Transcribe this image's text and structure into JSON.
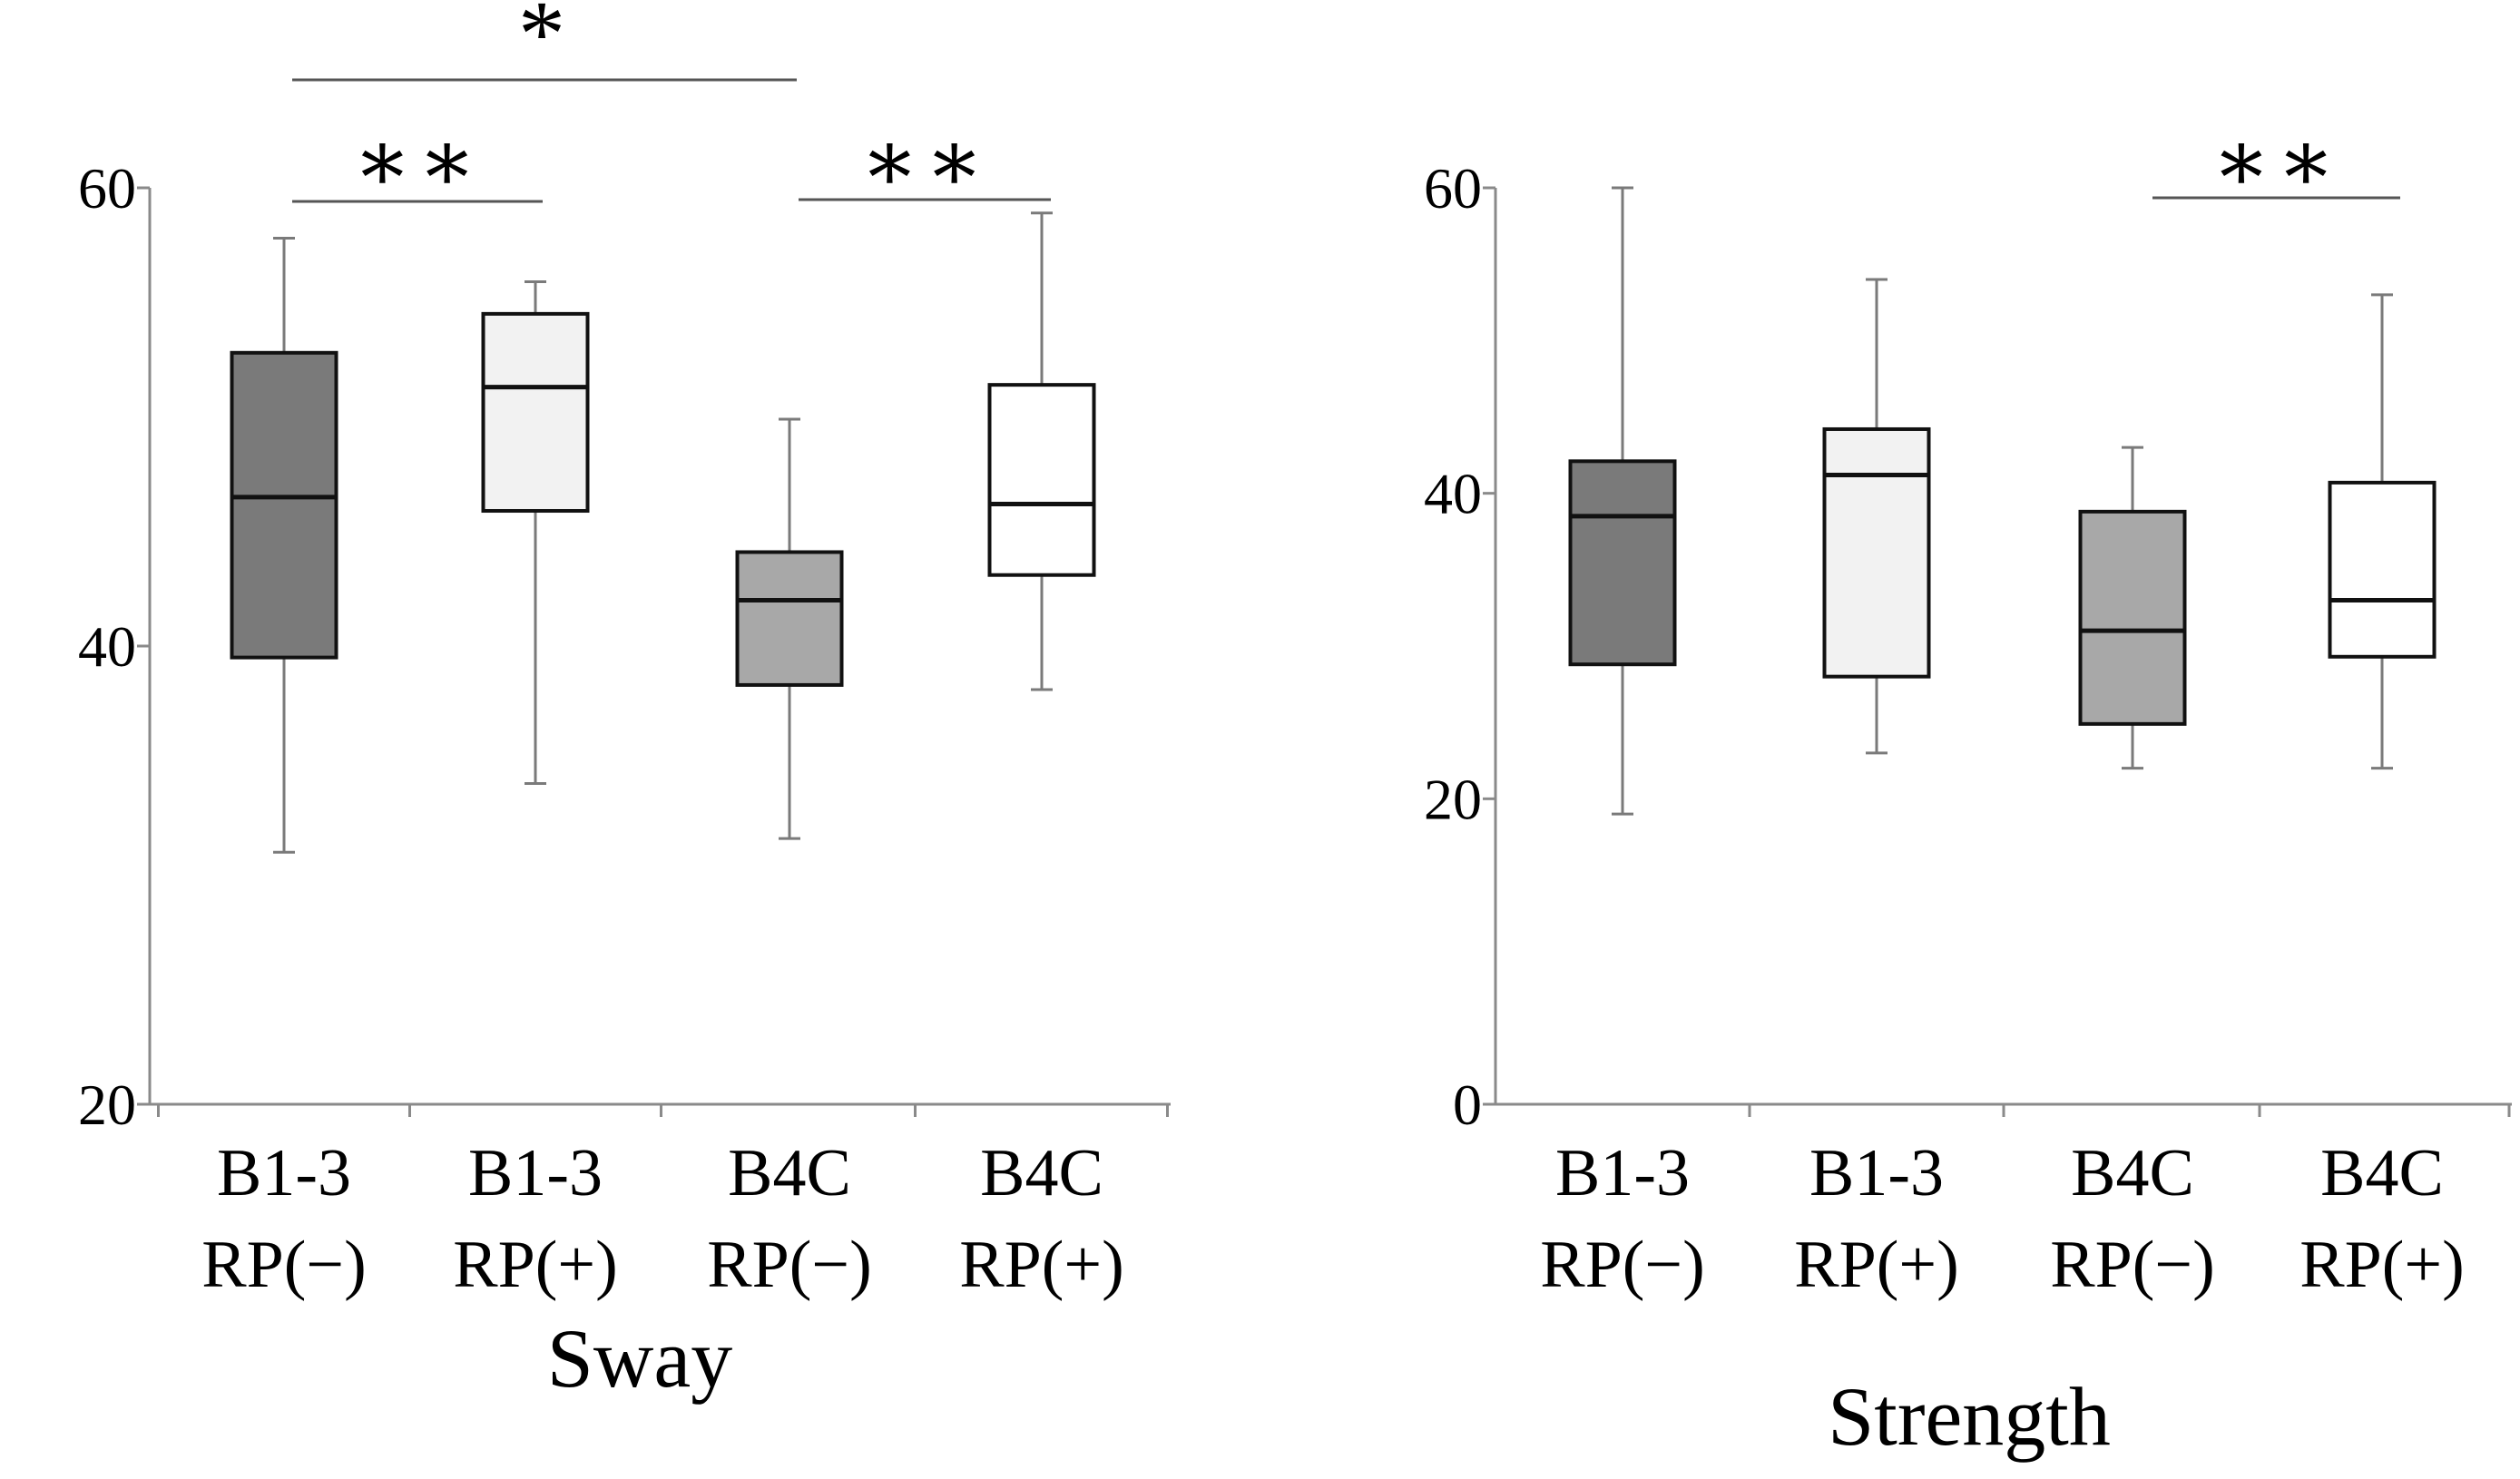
{
  "chart_data": [
    {
      "type": "box",
      "title": "Sway",
      "xlabel": "Sway",
      "ylabel": "",
      "ylim": [
        20,
        60
      ],
      "yticks": [
        20,
        40,
        60
      ],
      "ytick_labels": [
        "20",
        "40",
        "60"
      ],
      "categories": [
        {
          "line1": "B1-3",
          "line2": "RP(−)"
        },
        {
          "line1": "B1-3",
          "line2": "RP(+)"
        },
        {
          "line1": "B4C",
          "line2": "RP(−)"
        },
        {
          "line1": "B4C",
          "line2": "RP(+)"
        }
      ],
      "boxes": [
        {
          "min": 31,
          "q1": 39.5,
          "median": 46.5,
          "q3": 52.8,
          "max": 57.8,
          "fill": "#7a7a7a"
        },
        {
          "min": 34,
          "q1": 45.9,
          "median": 51.3,
          "q3": 54.5,
          "max": 55.9,
          "fill": "#f2f2f2"
        },
        {
          "min": 31.6,
          "q1": 38.3,
          "median": 42,
          "q3": 44.1,
          "max": 49.9,
          "fill": "#a8a8a8"
        },
        {
          "min": 38.1,
          "q1": 43.1,
          "median": 46.2,
          "q3": 51.4,
          "max": 58.9,
          "fill": "#ffffff"
        }
      ],
      "significance": [
        {
          "from": 0,
          "to": 2,
          "label": "*"
        },
        {
          "from": 0,
          "to": 1,
          "label": "∗∗"
        },
        {
          "from": 2,
          "to": 3,
          "label": "∗∗"
        }
      ]
    },
    {
      "type": "box",
      "title": "Strength",
      "xlabel": "Strength",
      "ylabel": "",
      "ylim": [
        0,
        60
      ],
      "yticks": [
        0,
        20,
        40,
        60
      ],
      "ytick_labels": [
        "0",
        "20",
        "40",
        "60"
      ],
      "categories": [
        {
          "line1": "B1-3",
          "line2": "RP(−)"
        },
        {
          "line1": "B1-3",
          "line2": "RP(+)"
        },
        {
          "line1": "B4C",
          "line2": "RP(−)"
        },
        {
          "line1": "B4C",
          "line2": "RP(+)"
        }
      ],
      "boxes": [
        {
          "min": 19,
          "q1": 28.8,
          "median": 38.5,
          "q3": 42.1,
          "max": 60,
          "fill": "#7a7a7a"
        },
        {
          "min": 23,
          "q1": 28,
          "median": 41.2,
          "q3": 44.2,
          "max": 54,
          "fill": "#f2f2f2"
        },
        {
          "min": 22,
          "q1": 24.9,
          "median": 31,
          "q3": 38.8,
          "max": 43,
          "fill": "#a8a8a8"
        },
        {
          "min": 22,
          "q1": 29.3,
          "median": 33,
          "q3": 40.7,
          "max": 53,
          "fill": "#ffffff"
        }
      ],
      "significance": [
        {
          "from": 2,
          "to": 3,
          "label": "∗∗"
        }
      ]
    }
  ]
}
